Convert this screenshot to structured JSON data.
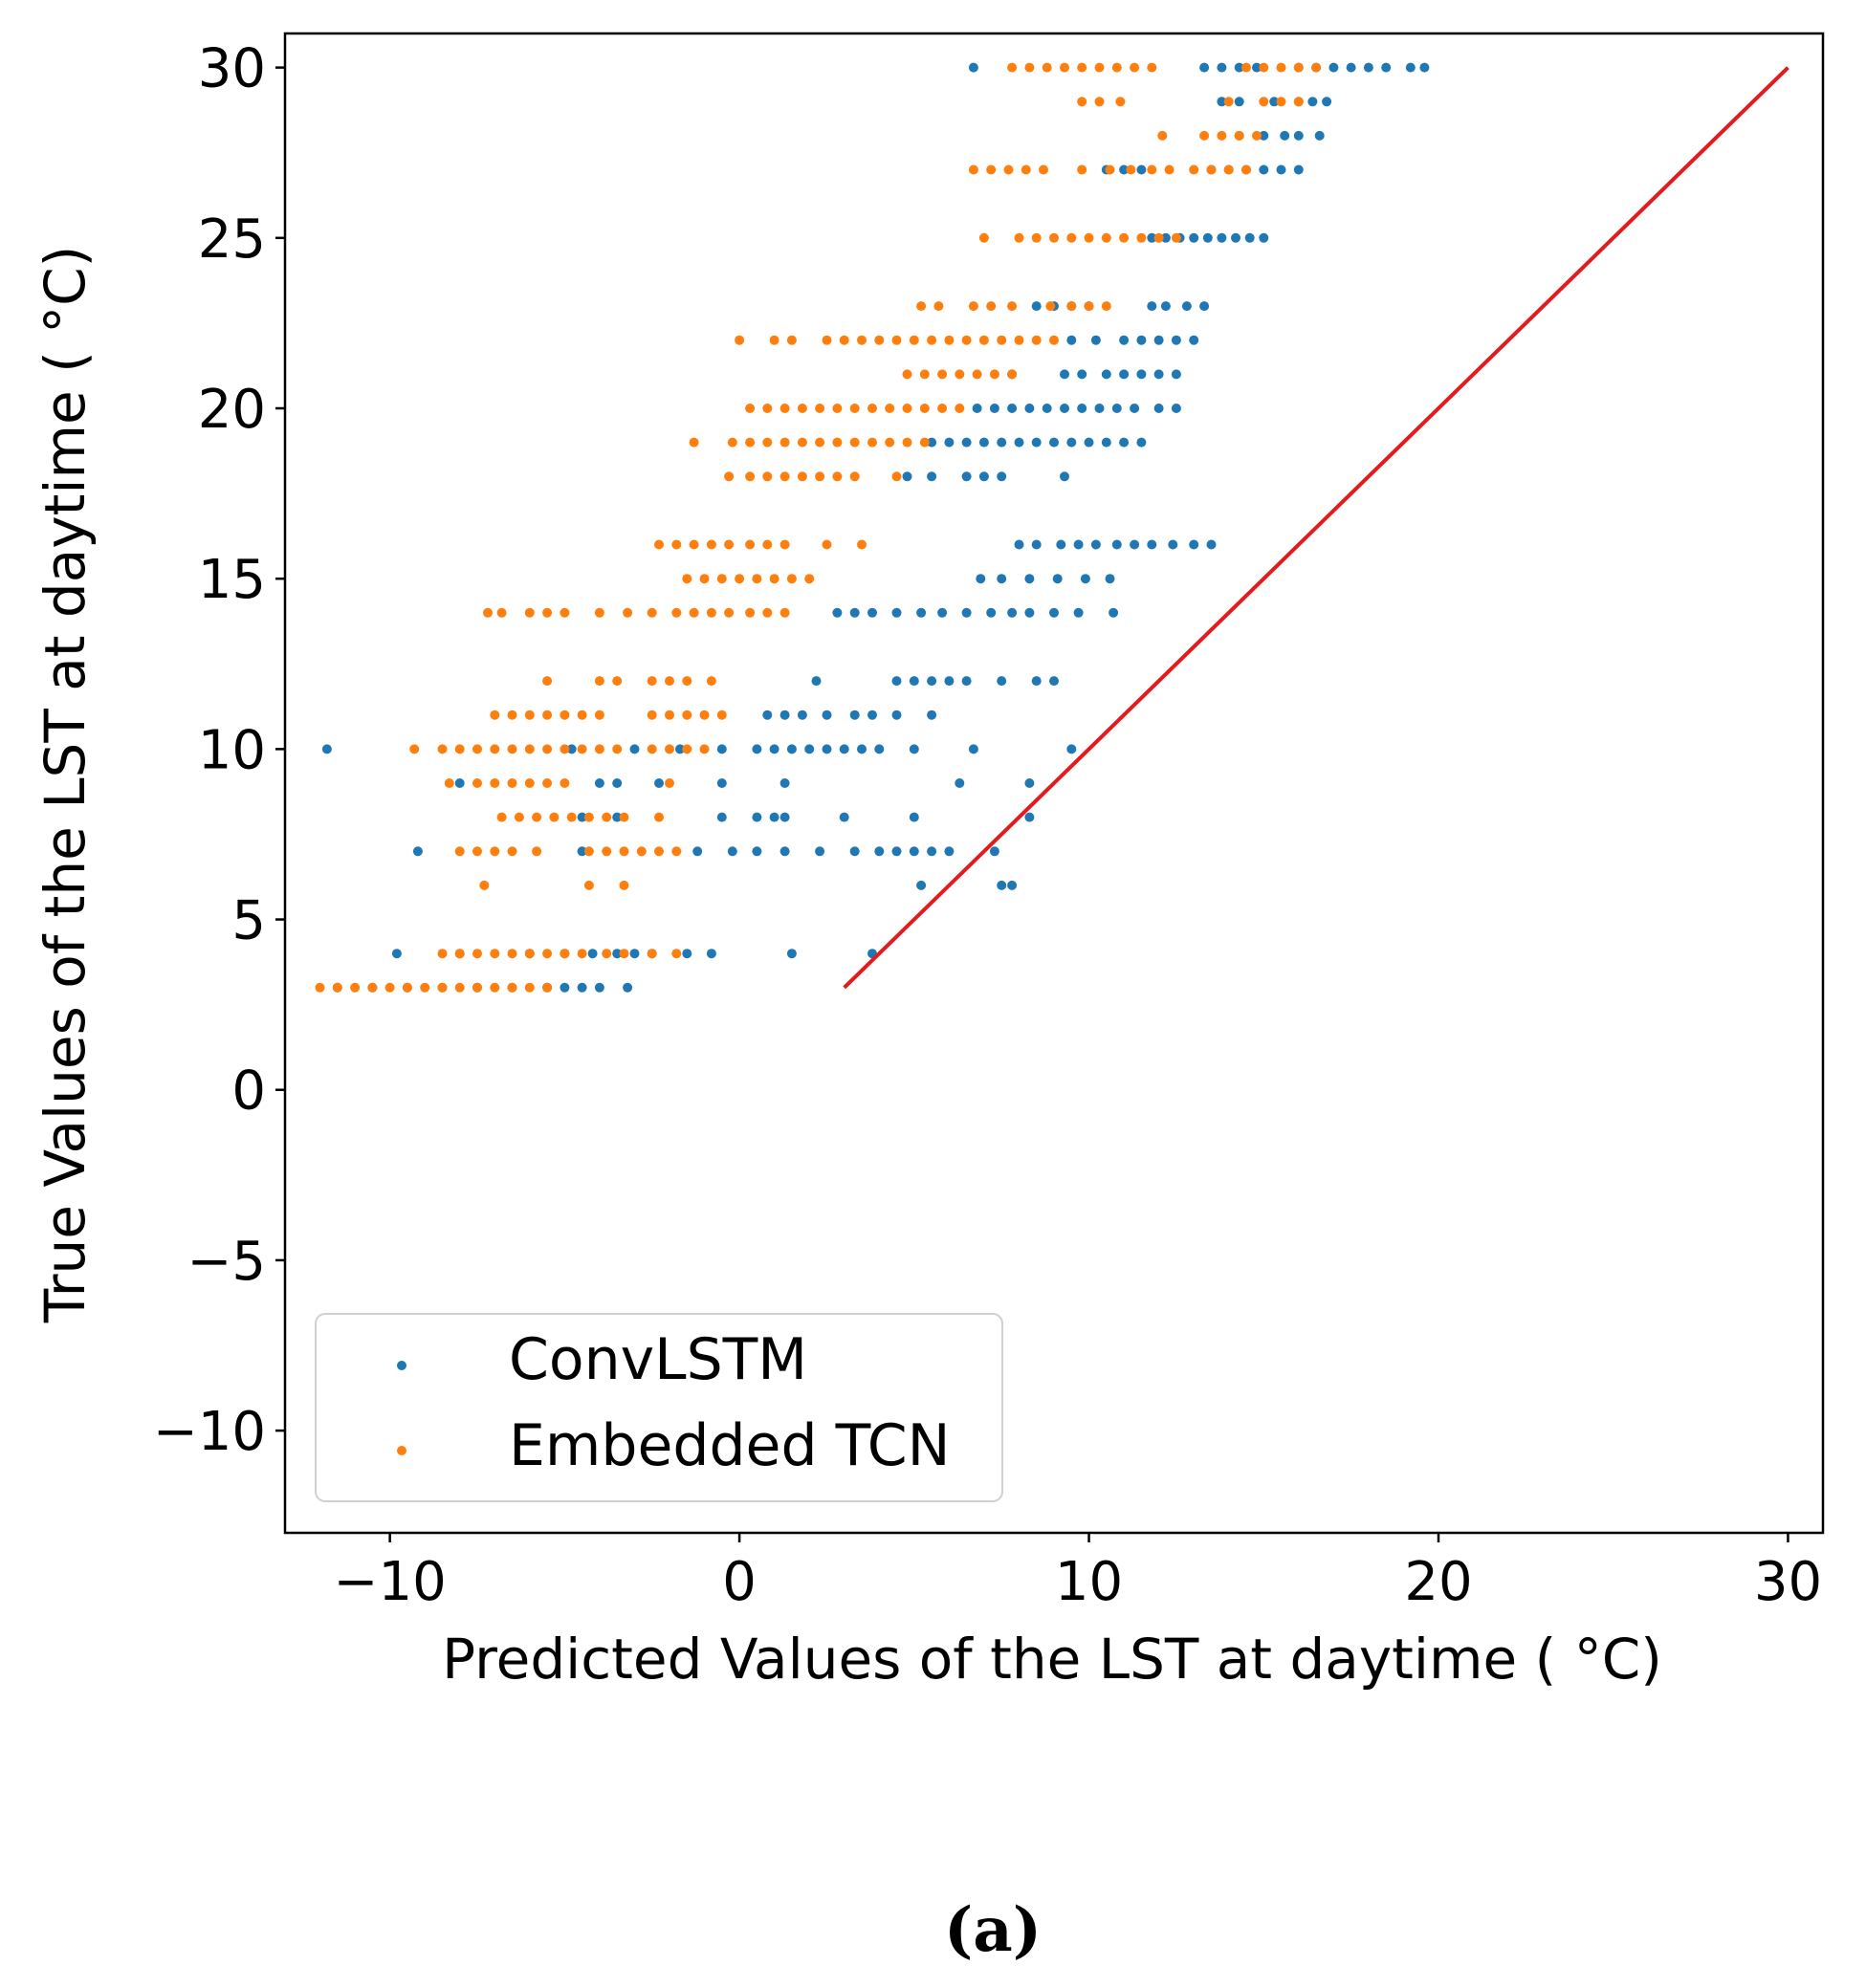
{
  "chart_data": {
    "type": "scatter",
    "xlabel": "Predicted Values of the LST at daytime ( °C)",
    "ylabel": "True Values of the LST at daytime ( °C)",
    "xlim": [
      -13,
      31
    ],
    "ylim": [
      -13,
      31
    ],
    "xticks": [
      -10,
      0,
      10,
      20,
      30
    ],
    "yticks": [
      -10,
      -5,
      0,
      5,
      10,
      15,
      20,
      25,
      30
    ],
    "xtick_labels": [
      "−10",
      "0",
      "10",
      "20",
      "30"
    ],
    "ytick_labels": [
      "−10",
      "−5",
      "0",
      "5",
      "10",
      "15",
      "20",
      "25",
      "30"
    ],
    "legend": {
      "position": "lower-left",
      "entries": [
        "ConvLSTM",
        "Embedded TCN"
      ]
    },
    "reference_line": {
      "name": "y = x",
      "color": "#e41a1c",
      "x": [
        3,
        30
      ],
      "y": [
        3,
        30
      ]
    },
    "series": [
      {
        "name": "ConvLSTM",
        "color": "#1f77b4",
        "rows": [
          {
            "y": 30,
            "x": [
              6.7,
              13.3,
              13.8,
              14.3,
              14.8,
              16.0,
              16.5,
              17.0,
              17.5,
              18.0,
              18.5,
              19.2,
              19.6
            ]
          },
          {
            "y": 29,
            "x": [
              13.8,
              14.3,
              15.3,
              16.0,
              16.4,
              16.8
            ]
          },
          {
            "y": 28,
            "x": [
              14.3,
              15.0,
              15.6,
              16.0,
              16.6
            ]
          },
          {
            "y": 27,
            "x": [
              10.5,
              11.0,
              11.5,
              13.5,
              14.0,
              14.5,
              15.0,
              15.5,
              16.0
            ]
          },
          {
            "y": 25,
            "x": [
              11.8,
              12.2,
              12.6,
              13.0,
              13.4,
              13.8,
              14.2,
              14.6,
              15.0
            ]
          },
          {
            "y": 23,
            "x": [
              8.5,
              9.0,
              9.5,
              10.0,
              11.8,
              12.2,
              12.8,
              13.3
            ]
          },
          {
            "y": 22,
            "x": [
              9.5,
              10.2,
              11.0,
              11.5,
              12.0,
              12.5,
              13.0
            ]
          },
          {
            "y": 21,
            "x": [
              7.8,
              9.3,
              9.8,
              10.5,
              11.0,
              11.5,
              12.0,
              12.5
            ]
          },
          {
            "y": 20,
            "x": [
              6.8,
              7.3,
              7.8,
              8.3,
              8.8,
              9.3,
              9.8,
              10.3,
              10.8,
              11.3,
              12.0,
              12.5
            ]
          },
          {
            "y": 19,
            "x": [
              5.5,
              6.0,
              6.5,
              7.0,
              7.5,
              8.0,
              8.5,
              9.0,
              9.5,
              10.0,
              10.5,
              11.0,
              11.5
            ]
          },
          {
            "y": 18,
            "x": [
              4.8,
              5.5,
              6.5,
              7.0,
              7.5,
              9.3
            ]
          },
          {
            "y": 16,
            "x": [
              8.0,
              8.5,
              9.2,
              9.7,
              10.2,
              10.8,
              11.3,
              11.8,
              12.4,
              13.0,
              13.5
            ]
          },
          {
            "y": 15,
            "x": [
              6.9,
              7.5,
              8.3,
              9.1,
              9.9,
              10.6
            ]
          },
          {
            "y": 14,
            "x": [
              2.8,
              3.3,
              3.8,
              4.5,
              5.2,
              5.8,
              6.5,
              7.2,
              7.8,
              8.3,
              9.0,
              9.7,
              10.7
            ]
          },
          {
            "y": 12,
            "x": [
              2.2,
              4.5,
              5.0,
              5.5,
              6.0,
              6.5,
              7.5,
              8.5,
              9.0
            ]
          },
          {
            "y": 11,
            "x": [
              0.8,
              1.3,
              1.8,
              2.5,
              3.3,
              3.8,
              4.5,
              5.5
            ]
          },
          {
            "y": 10,
            "x": [
              -11.8,
              -4.8,
              -3.0,
              -1.7,
              -0.5,
              0.5,
              1.0,
              1.5,
              2.0,
              2.5,
              3.0,
              3.5,
              4.0,
              5.0,
              6.7,
              9.5
            ]
          },
          {
            "y": 9,
            "x": [
              -8.0,
              -4.0,
              -3.5,
              -2.3,
              -0.5,
              1.3,
              6.3,
              8.3
            ]
          },
          {
            "y": 8,
            "x": [
              -4.5,
              -3.5,
              -0.5,
              0.5,
              1.0,
              1.3,
              3.0,
              5.0,
              8.3
            ]
          },
          {
            "y": 7,
            "x": [
              -9.2,
              -4.5,
              -1.2,
              -0.2,
              0.5,
              1.3,
              2.3,
              3.3,
              4.0,
              4.5,
              5.0,
              5.5,
              6.0,
              7.3
            ]
          },
          {
            "y": 6,
            "x": [
              5.2,
              7.5,
              7.8
            ]
          },
          {
            "y": 4,
            "x": [
              -9.8,
              -8.0,
              -6.0,
              -5.0,
              -4.2,
              -3.5,
              -3.0,
              -2.5,
              -1.5,
              -0.8,
              1.5,
              3.8
            ]
          },
          {
            "y": 3,
            "x": [
              -11.5,
              -10.5,
              -9.5,
              -8.5,
              -7.5,
              -6.5,
              -5.5,
              -5.0,
              -4.5,
              -4.0,
              -3.2
            ]
          }
        ]
      },
      {
        "name": "Embedded TCN",
        "color": "#ff7f0e",
        "rows": [
          {
            "y": 30,
            "x": [
              7.8,
              8.3,
              8.8,
              9.3,
              9.8,
              10.3,
              10.8,
              11.3,
              11.8,
              14.5,
              15.0,
              15.5,
              16.0,
              16.5
            ]
          },
          {
            "y": 29,
            "x": [
              9.8,
              10.3,
              10.9,
              14.0,
              15.0,
              15.5,
              16.0
            ]
          },
          {
            "y": 28,
            "x": [
              12.1,
              13.3,
              13.8,
              14.3,
              14.8
            ]
          },
          {
            "y": 27,
            "x": [
              6.7,
              7.2,
              7.7,
              8.2,
              8.7,
              9.8,
              10.6,
              11.2,
              11.8,
              12.3,
              13.0,
              13.5,
              14.0,
              14.5
            ]
          },
          {
            "y": 25,
            "x": [
              7.0,
              8.0,
              8.5,
              9.0,
              9.5,
              10.0,
              10.5,
              11.0,
              11.5,
              12.0,
              12.5
            ]
          },
          {
            "y": 23,
            "x": [
              5.2,
              5.7,
              6.7,
              7.2,
              7.8,
              8.9,
              9.5,
              10.0,
              10.5
            ]
          },
          {
            "y": 22,
            "x": [
              0.0,
              1.0,
              1.5,
              2.5,
              3.0,
              3.5,
              4.0,
              4.5,
              5.0,
              5.5,
              6.0,
              6.5,
              7.0,
              7.5,
              8.0,
              8.5,
              9.0
            ]
          },
          {
            "y": 21,
            "x": [
              4.8,
              5.3,
              5.8,
              6.3,
              6.8,
              7.3,
              7.8
            ]
          },
          {
            "y": 20,
            "x": [
              0.3,
              0.8,
              1.3,
              1.8,
              2.3,
              2.8,
              3.3,
              3.8,
              4.3,
              4.8,
              5.3,
              5.8,
              6.3
            ]
          },
          {
            "y": 19,
            "x": [
              -1.3,
              -0.2,
              0.3,
              0.8,
              1.3,
              1.8,
              2.3,
              2.8,
              3.3,
              3.8,
              4.3,
              4.8,
              5.3
            ]
          },
          {
            "y": 18,
            "x": [
              -0.3,
              0.3,
              0.8,
              1.3,
              1.8,
              2.3,
              2.8,
              3.3,
              4.5
            ]
          },
          {
            "y": 16,
            "x": [
              -2.3,
              -1.8,
              -1.3,
              -0.8,
              -0.3,
              0.3,
              0.8,
              1.3,
              2.5,
              3.5
            ]
          },
          {
            "y": 15,
            "x": [
              -1.5,
              -1.0,
              -0.5,
              0.0,
              0.5,
              1.0,
              1.5,
              2.0
            ]
          },
          {
            "y": 14,
            "x": [
              -7.2,
              -6.8,
              -6.0,
              -5.5,
              -5.0,
              -4.0,
              -3.2,
              -2.5,
              -1.8,
              -1.3,
              -0.8,
              -0.3,
              0.3,
              0.8,
              1.3
            ]
          },
          {
            "y": 12,
            "x": [
              -5.5,
              -4.0,
              -3.5,
              -2.5,
              -2.0,
              -1.5,
              -0.8
            ]
          },
          {
            "y": 11,
            "x": [
              -7.0,
              -6.5,
              -6.0,
              -5.5,
              -5.0,
              -4.5,
              -4.0,
              -2.5,
              -2.0,
              -1.5,
              -1.0,
              -0.5
            ]
          },
          {
            "y": 10,
            "x": [
              -9.3,
              -8.5,
              -8.0,
              -7.5,
              -7.0,
              -6.5,
              -6.0,
              -5.5,
              -5.0,
              -4.5,
              -4.0,
              -3.5,
              -2.5,
              -2.0,
              -1.5,
              -1.0
            ]
          },
          {
            "y": 9,
            "x": [
              -8.3,
              -7.5,
              -7.0,
              -6.5,
              -6.0,
              -5.5,
              -5.0,
              -2.0
            ]
          },
          {
            "y": 8,
            "x": [
              -6.8,
              -6.3,
              -5.8,
              -5.3,
              -4.8,
              -4.3,
              -3.8,
              -3.3,
              -2.3
            ]
          },
          {
            "y": 7,
            "x": [
              -8.0,
              -7.5,
              -7.0,
              -6.5,
              -5.8,
              -4.3,
              -3.8,
              -3.3,
              -2.8,
              -2.3,
              -1.8
            ]
          },
          {
            "y": 6,
            "x": [
              -7.3,
              -4.3,
              -3.3
            ]
          },
          {
            "y": 4,
            "x": [
              -8.5,
              -8.0,
              -7.5,
              -7.0,
              -6.5,
              -6.0,
              -5.5,
              -5.0,
              -4.5,
              -3.8,
              -3.3,
              -2.5,
              -1.8
            ]
          },
          {
            "y": 3,
            "x": [
              -12.0,
              -11.5,
              -11.0,
              -10.5,
              -10.0,
              -9.5,
              -9.0,
              -8.5,
              -8.0,
              -7.5,
              -7.0,
              -6.5,
              -6.0,
              -5.5
            ]
          }
        ]
      }
    ]
  },
  "caption": "(a)"
}
